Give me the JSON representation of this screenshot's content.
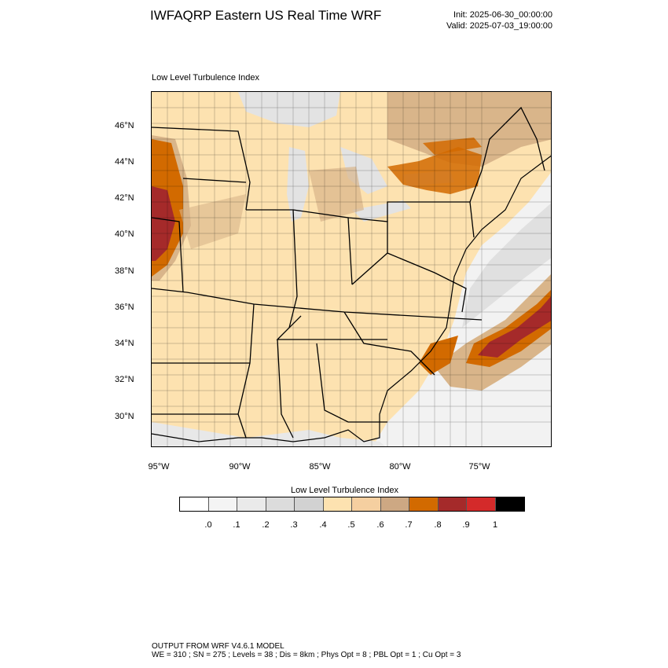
{
  "header": {
    "title": "IWFAQRP Eastern US Real Time WRF",
    "init": "Init: 2025-06-30_00:00:00",
    "valid": "Valid: 2025-07-03_19:00:00"
  },
  "map": {
    "subtitle": "Low Level Turbulence Index",
    "lat_labels": [
      "46°N",
      "44°N",
      "42°N",
      "40°N",
      "38°N",
      "36°N",
      "34°N",
      "32°N",
      "30°N"
    ],
    "lon_labels": [
      "95°W",
      "90°W",
      "85°W",
      "80°W",
      "75°W"
    ],
    "colors": {
      "low": "#fde2b0",
      "mid": "#d9b58a",
      "high": "#d26a00",
      "very_high": "#a52a2a",
      "water": "#e6e6e6",
      "water_light": "#f2f2f2"
    }
  },
  "legend": {
    "title": "Low Level Turbulence Index",
    "tick_labels": [
      ".0",
      ".1",
      ".2",
      ".3",
      ".4",
      ".5",
      ".6",
      ".7",
      ".8",
      ".9",
      "1"
    ],
    "colors": [
      "#ffffff",
      "#f4f4f4",
      "#eaeaea",
      "#dcdcdc",
      "#d2d2d2",
      "#fde2b0",
      "#f5cfa0",
      "#cda883",
      "#d26a00",
      "#a52a2a",
      "#d42a2a",
      "#000000"
    ]
  },
  "footer": {
    "line1": "OUTPUT FROM WRF V4.6.1 MODEL",
    "line2": "WE = 310 ; SN = 275 ; Levels = 38 ; Dis = 8km ; Phys Opt = 8 ; PBL Opt = 1 ; Cu Opt = 3"
  }
}
